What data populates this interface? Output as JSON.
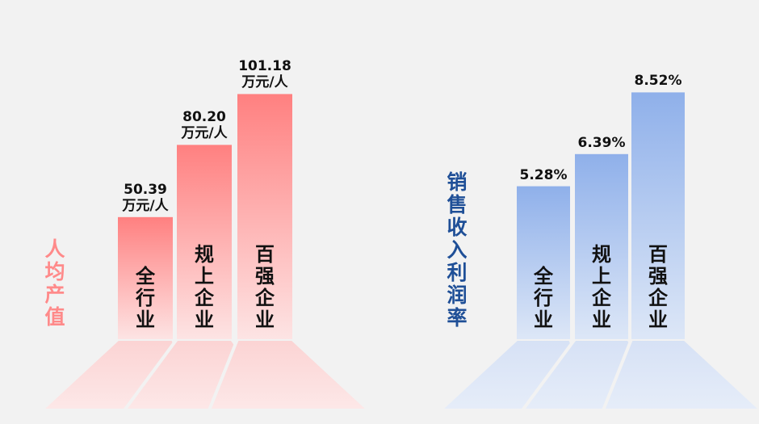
{
  "chart_data": [
    {
      "type": "bar",
      "title": "人均产值",
      "categories": [
        "全行业",
        "规上企业",
        "百强企业"
      ],
      "values": [
        50.39,
        80.2,
        101.18
      ],
      "value_labels": [
        "50.39\n万元/人",
        "80.20\n万元/人",
        "101.18\n万元/人"
      ],
      "unit": "万元/人",
      "ylim": [
        0,
        110
      ],
      "grid": false,
      "legend": "none",
      "colors": {
        "top": "#ff8080",
        "bottom": "#fde4e4",
        "title": "#ff8a8a"
      }
    },
    {
      "type": "bar",
      "title": "销售收入利润率",
      "categories": [
        "全行业",
        "规上企业",
        "百强企业"
      ],
      "values": [
        5.28,
        6.39,
        8.52
      ],
      "value_labels": [
        "5.28%",
        "6.39%",
        "8.52%"
      ],
      "unit": "%",
      "ylim": [
        0,
        9.2
      ],
      "grid": false,
      "legend": "none",
      "colors": {
        "top": "#8fb0ea",
        "bottom": "#dde7f7",
        "title": "#1f4f97"
      }
    }
  ]
}
